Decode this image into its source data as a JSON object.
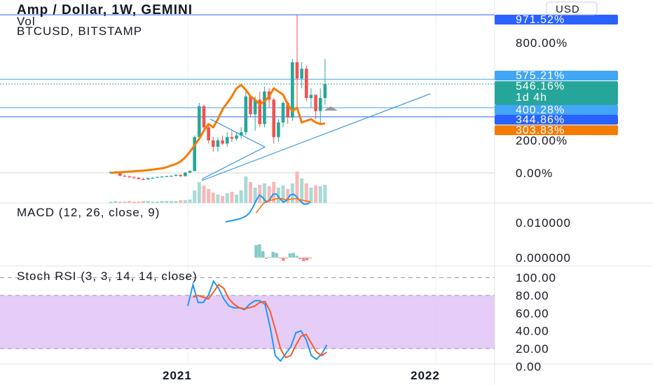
{
  "header": {
    "title": "Amp / Dollar, 1W, GEMINI",
    "vol_label": "Vol",
    "compare_label": "BTCUSD, BITSTAMP"
  },
  "currency_button": "USD",
  "colors": {
    "up": "#26a69a",
    "down": "#ef5350",
    "compare": "#f57c00",
    "trend": "#1e88e5",
    "macd": "#2196f3",
    "signal": "#ff6d00",
    "stoch_k": "#2196f3",
    "stoch_d": "#ff5722",
    "stoch_band": "#e1c4f7",
    "hline": "#2962ff"
  },
  "chart_data": [
    {
      "type": "candlestick",
      "title": "Amp / Dollar, 1W, GEMINI",
      "yaxis": "percent",
      "y_ticks": [
        "800.00%",
        "200.00%",
        "0.00%"
      ],
      "ylim": [
        -50,
        1050
      ],
      "x_ticks": [
        "2021",
        "2022"
      ],
      "price_labels": [
        {
          "text": "971.52%",
          "value": 971.52,
          "color": "#2962ff"
        },
        {
          "text": "575.21%",
          "value": 575.21,
          "color": "#42a5f5"
        },
        {
          "text": "546.16%",
          "sub": "1d 4h",
          "value": 546.16,
          "color": "#26a69a"
        },
        {
          "text": "400.28%",
          "value": 400.28,
          "color": "#42a5f5"
        },
        {
          "text": "344.86%",
          "value": 344.86,
          "color": "#2962ff"
        },
        {
          "text": "303.83%",
          "value": 303.83,
          "color": "#f57c00"
        }
      ],
      "candles": [
        [
          0,
          0,
          10,
          -5,
          5
        ],
        [
          5,
          8,
          12,
          2,
          6
        ],
        [
          6,
          6,
          8,
          -20,
          -18
        ],
        [
          -18,
          -15,
          -10,
          -25,
          -22
        ],
        [
          -22,
          -20,
          -15,
          -30,
          -28
        ],
        [
          -28,
          -25,
          -20,
          -35,
          -30
        ],
        [
          -30,
          -28,
          -25,
          -40,
          -38
        ],
        [
          -38,
          -35,
          -30,
          -42,
          -40
        ],
        [
          -40,
          -30,
          -28,
          -40,
          -32
        ],
        [
          -32,
          -28,
          -25,
          -35,
          -30
        ],
        [
          -30,
          -28,
          -24,
          -32,
          -25
        ],
        [
          -25,
          -24,
          -20,
          -28,
          -22
        ],
        [
          -22,
          -20,
          -18,
          -25,
          -20
        ],
        [
          -20,
          -18,
          -15,
          -22,
          -18
        ],
        [
          -18,
          -10,
          -8,
          -20,
          -12
        ],
        [
          -12,
          -15,
          -10,
          -25,
          -20
        ],
        [
          -20,
          0,
          5,
          -22,
          2
        ],
        [
          2,
          10,
          15,
          -2,
          12
        ],
        [
          12,
          215,
          230,
          10,
          220
        ],
        [
          220,
          220,
          430,
          200,
          410
        ],
        [
          410,
          300,
          420,
          260,
          280
        ],
        [
          280,
          230,
          300,
          180,
          200
        ],
        [
          200,
          170,
          220,
          130,
          160
        ],
        [
          160,
          210,
          220,
          130,
          200
        ],
        [
          200,
          190,
          230,
          170,
          180
        ],
        [
          180,
          230,
          250,
          160,
          220
        ],
        [
          220,
          240,
          260,
          190,
          210
        ],
        [
          210,
          240,
          250,
          200,
          230
        ],
        [
          230,
          270,
          280,
          210,
          250
        ],
        [
          250,
          400,
          500,
          230,
          470
        ],
        [
          470,
          400,
          480,
          340,
          360
        ],
        [
          360,
          300,
          470,
          260,
          450
        ],
        [
          450,
          440,
          500,
          280,
          300
        ],
        [
          300,
          420,
          530,
          280,
          500
        ],
        [
          500,
          420,
          520,
          400,
          450
        ],
        [
          450,
          200,
          460,
          180,
          220
        ],
        [
          220,
          300,
          330,
          190,
          310
        ],
        [
          310,
          420,
          440,
          280,
          430
        ],
        [
          430,
          320,
          440,
          300,
          340
        ],
        [
          340,
          480,
          700,
          320,
          680
        ],
        [
          680,
          520,
          970,
          400,
          580
        ],
        [
          580,
          560,
          680,
          520,
          640
        ],
        [
          640,
          560,
          660,
          440,
          460
        ],
        [
          460,
          440,
          520,
          400,
          480
        ],
        [
          480,
          400,
          440,
          330,
          380
        ],
        [
          380,
          420,
          520,
          300,
          460
        ],
        [
          460,
          540,
          700,
          420,
          546
        ]
      ],
      "volume": [
        2,
        3,
        2,
        2,
        3,
        2,
        2,
        3,
        3,
        2,
        2,
        3,
        3,
        3,
        3,
        4,
        4,
        5,
        18,
        30,
        25,
        20,
        15,
        12,
        10,
        14,
        16,
        12,
        18,
        38,
        30,
        22,
        26,
        28,
        24,
        30,
        22,
        25,
        20,
        28,
        45,
        35,
        28,
        22,
        25,
        24,
        26
      ],
      "series": [
        {
          "name": "BTCUSD, BITSTAMP",
          "values": [
            0,
            2,
            4,
            6,
            8,
            10,
            12,
            14,
            17,
            20,
            24,
            28,
            35,
            45,
            55,
            70,
            95,
            130,
            170,
            210,
            260,
            300,
            280,
            330,
            390,
            430,
            470,
            520,
            540,
            510,
            470,
            450,
            420,
            440,
            470,
            520,
            500,
            480,
            420,
            380,
            400,
            310,
            320,
            330,
            310,
            300,
            304
          ]
        }
      ]
    },
    {
      "type": "line",
      "title": "MACD (12, 26, close, 9)",
      "y_ticks": [
        "0.010000",
        "0.000000"
      ],
      "ylim": [
        -0.002,
        0.02
      ],
      "series": [
        {
          "name": "MACD",
          "values": [
            null,
            null,
            null,
            null,
            null,
            null,
            null,
            null,
            null,
            null,
            null,
            null,
            null,
            null,
            null,
            null,
            null,
            null,
            null,
            null,
            null,
            null,
            null,
            null,
            null,
            null,
            null,
            null,
            null,
            null,
            null,
            null,
            0.01,
            0.0102,
            0.0104,
            0.0106,
            0.0108,
            0.0112,
            0.0116,
            0.0125,
            0.014,
            0.016,
            0.0175,
            0.0168,
            0.0155,
            0.0162,
            0.0178,
            0.0178,
            0.0165,
            0.0155,
            0.016,
            0.0175,
            0.0178,
            0.017,
            0.0158,
            0.015,
            0.015,
            0.0155
          ]
        },
        {
          "name": "Signal",
          "values": [
            null,
            null,
            null,
            null,
            null,
            null,
            null,
            null,
            null,
            null,
            null,
            null,
            null,
            null,
            null,
            null,
            null,
            null,
            null,
            null,
            null,
            null,
            null,
            null,
            null,
            null,
            null,
            null,
            null,
            null,
            null,
            null,
            null,
            null,
            null,
            null,
            null,
            null,
            null,
            null,
            null,
            0.0125,
            0.0138,
            0.015,
            0.0158,
            0.016,
            0.0162,
            0.0165,
            0.0166,
            0.0164,
            0.0162,
            0.0163,
            0.0165,
            0.0165,
            0.0162,
            0.016,
            0.0158,
            0.0157
          ]
        },
        {
          "name": "Histogram",
          "values": [
            null,
            null,
            null,
            null,
            null,
            null,
            null,
            null,
            null,
            null,
            null,
            null,
            null,
            null,
            null,
            null,
            null,
            null,
            null,
            null,
            null,
            null,
            null,
            null,
            null,
            null,
            null,
            null,
            null,
            null,
            null,
            null,
            null,
            null,
            null,
            null,
            null,
            null,
            null,
            null,
            null,
            0.0035,
            0.0037,
            0.0018,
            -0.0003,
            0.0002,
            0.0016,
            0.0013,
            -0.0001,
            -0.0009,
            -0.0002,
            0.0012,
            0.0013,
            0.0005,
            -0.0004,
            -0.001,
            -0.0008,
            -0.0002
          ]
        }
      ]
    },
    {
      "type": "line",
      "title": "Stoch RSI (3, 3, 14, 14, close)",
      "y_ticks": [
        "100.00",
        "80.00",
        "60.00",
        "40.00",
        "20.00",
        "0.00"
      ],
      "ylim": [
        0,
        100
      ],
      "band": [
        20,
        80
      ],
      "series": [
        {
          "name": "K",
          "values": [
            68,
            92,
            72,
            72,
            80,
            96,
            88,
            76,
            68,
            66,
            66,
            64,
            70,
            74,
            74,
            70,
            44,
            12,
            6,
            14,
            22,
            38,
            40,
            30,
            12,
            8,
            14,
            24
          ]
        },
        {
          "name": "D",
          "values": [
            null,
            78,
            80,
            78,
            76,
            84,
            92,
            88,
            76,
            70,
            66,
            65,
            66,
            68,
            72,
            73,
            62,
            42,
            20,
            10,
            12,
            24,
            34,
            36,
            26,
            16,
            12,
            16
          ]
        }
      ]
    }
  ]
}
